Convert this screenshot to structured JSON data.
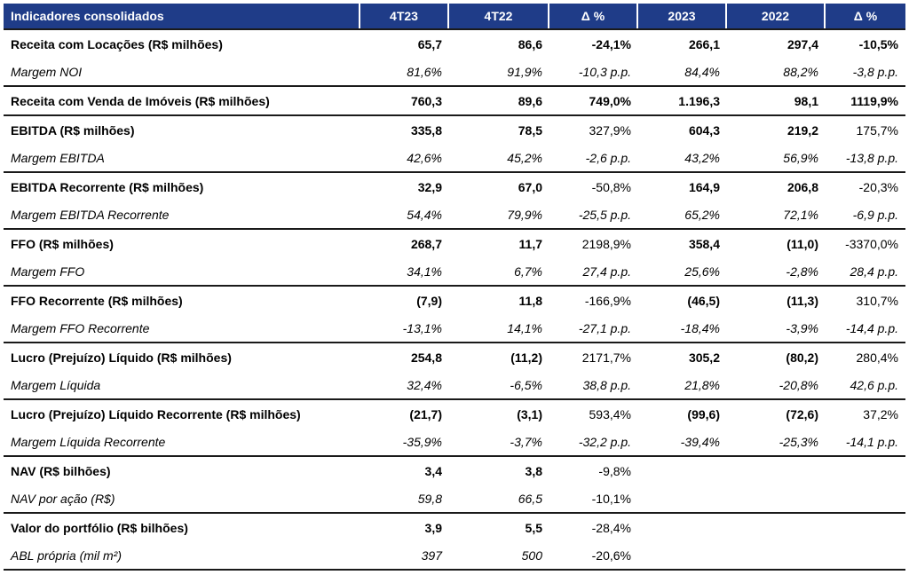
{
  "header": {
    "title": "Indicadores consolidados",
    "columns": [
      "4T23",
      "4T22",
      "Δ %",
      "2023",
      "2022",
      "Δ %"
    ]
  },
  "rows": [
    {
      "label": "Receita com Locações (R$ milhões)",
      "values": [
        "65,7",
        "86,6",
        "-24,1%",
        "266,1",
        "297,4",
        "-10,5%"
      ]
    },
    {
      "label": "Margem NOI",
      "values": [
        "81,6%",
        "91,9%",
        "-10,3 p.p.",
        "84,4%",
        "88,2%",
        "-3,8 p.p."
      ]
    },
    {
      "label": "Receita com Venda de Imóveis (R$ milhões)",
      "values": [
        "760,3",
        "89,6",
        "749,0%",
        "1.196,3",
        "98,1",
        "1119,9%"
      ]
    },
    {
      "label": "EBITDA (R$ milhões)",
      "values": [
        "335,8",
        "78,5",
        "327,9%",
        "604,3",
        "219,2",
        "175,7%"
      ]
    },
    {
      "label": "Margem EBITDA",
      "values": [
        "42,6%",
        "45,2%",
        "-2,6 p.p.",
        "43,2%",
        "56,9%",
        "-13,8 p.p."
      ]
    },
    {
      "label": "EBITDA Recorrente (R$ milhões)",
      "values": [
        "32,9",
        "67,0",
        "-50,8%",
        "164,9",
        "206,8",
        "-20,3%"
      ]
    },
    {
      "label": "Margem EBITDA Recorrente",
      "values": [
        "54,4%",
        "79,9%",
        "-25,5 p.p.",
        "65,2%",
        "72,1%",
        "-6,9 p.p."
      ]
    },
    {
      "label": "FFO (R$ milhões)",
      "values": [
        "268,7",
        "11,7",
        "2198,9%",
        "358,4",
        "(11,0)",
        "-3370,0%"
      ]
    },
    {
      "label": "Margem FFO",
      "values": [
        "34,1%",
        "6,7%",
        "27,4 p.p.",
        "25,6%",
        "-2,8%",
        "28,4 p.p."
      ]
    },
    {
      "label": "FFO Recorrente (R$ milhões)",
      "values": [
        "(7,9)",
        "11,8",
        "-166,9%",
        "(46,5)",
        "(11,3)",
        "310,7%"
      ]
    },
    {
      "label": "Margem FFO Recorrente",
      "values": [
        "-13,1%",
        "14,1%",
        "-27,1 p.p.",
        "-18,4%",
        "-3,9%",
        "-14,4 p.p."
      ]
    },
    {
      "label": "Lucro (Prejuízo) Líquido (R$ milhões)",
      "values": [
        "254,8",
        "(11,2)",
        "2171,7%",
        "305,2",
        "(80,2)",
        "280,4%"
      ]
    },
    {
      "label": "Margem Líquida",
      "values": [
        "32,4%",
        "-6,5%",
        "38,8 p.p.",
        "21,8%",
        "-20,8%",
        "42,6 p.p."
      ]
    },
    {
      "label": "Lucro (Prejuízo) Líquido Recorrente (R$ milhões)",
      "values": [
        "(21,7)",
        "(3,1)",
        "593,4%",
        "(99,6)",
        "(72,6)",
        "37,2%"
      ]
    },
    {
      "label": "Margem Líquida Recorrente",
      "values": [
        "-35,9%",
        "-3,7%",
        "-32,2 p.p.",
        "-39,4%",
        "-25,3%",
        "-14,1 p.p."
      ]
    },
    {
      "label": "NAV (R$ bilhões)",
      "values": [
        "3,4",
        "3,8",
        "-9,8%",
        "",
        "",
        ""
      ]
    },
    {
      "label": "NAV por ação (R$)",
      "values": [
        "59,8",
        "66,5",
        "-10,1%",
        "",
        "",
        ""
      ]
    },
    {
      "label": "Valor do portfólio (R$ bilhões)",
      "values": [
        "3,9",
        "5,5",
        "-28,4%",
        "",
        "",
        ""
      ]
    },
    {
      "label": "ABL própria (mil m²)",
      "values": [
        "397",
        "500",
        "-20,6%",
        "",
        "",
        ""
      ]
    }
  ]
}
